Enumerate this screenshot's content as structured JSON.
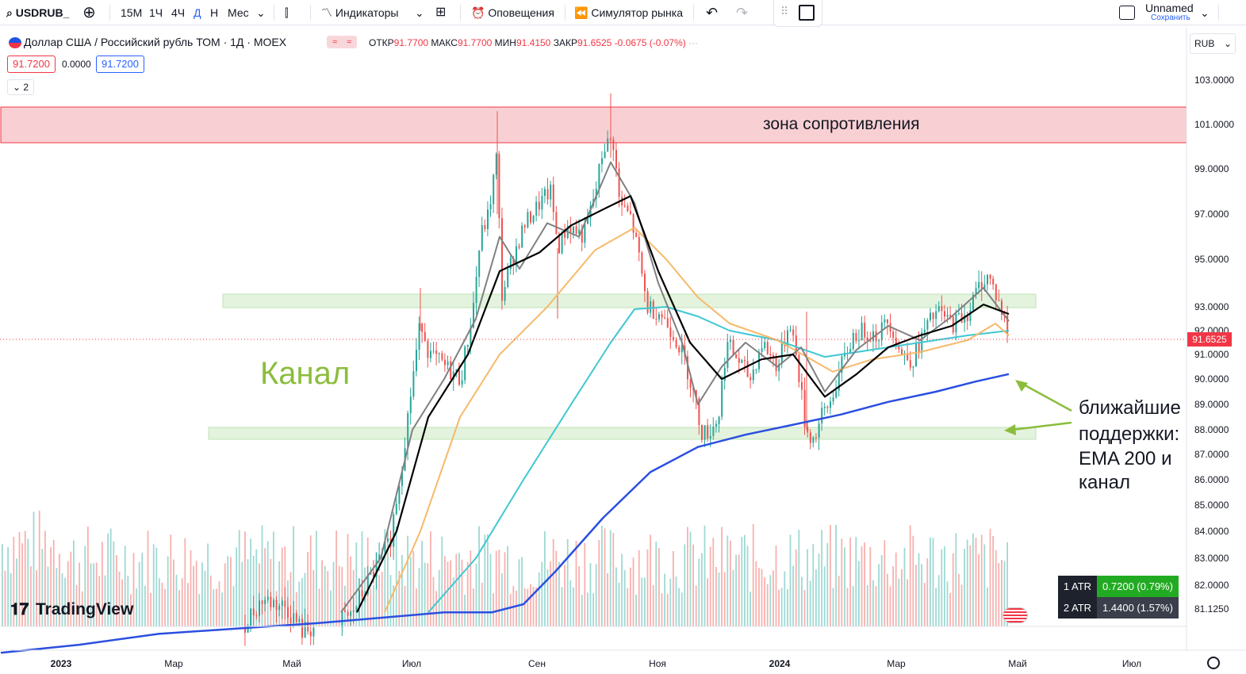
{
  "toolbar": {
    "symbol": "USDRUB_",
    "intervals": [
      "15М",
      "1Ч",
      "4Ч",
      "Д",
      "Н",
      "Мес"
    ],
    "active_interval": "Д",
    "indicators_label": "Индикаторы",
    "alerts_label": "Оповещения",
    "replay_label": "Симулятор рынка",
    "layout_name": "Unnamed",
    "save_label": "Сохранить"
  },
  "legend": {
    "title": "Доллар США / Российский рубль ТОМ · 1Д · MOEX",
    "open_label": "ОТКР",
    "open": "91.7700",
    "high_label": "МАКС",
    "high": "91.7700",
    "low_label": "МИН",
    "low": "91.4150",
    "close_label": "ЗАКР",
    "close": "91.6525",
    "change": "-0.0675 (-0.07%)",
    "sell_price": "91.7200",
    "spread": "0.0000",
    "buy_price": "91.7200",
    "collapsed_count": "2"
  },
  "currency": "RUB",
  "atr": [
    {
      "label": "1 ATR",
      "value": "0.7200 (0.79%)"
    },
    {
      "label": "2 ATR",
      "value": "1.4400 (1.57%)"
    }
  ],
  "branding": "TradingView",
  "chart_data": {
    "type": "candlestick",
    "price_axis_ticks": [
      "103.0000",
      "101.0000",
      "99.0000",
      "97.0000",
      "95.0000",
      "93.0000",
      "92.0000",
      "91.0000",
      "90.0000",
      "89.0000",
      "88.0000",
      "87.0000",
      "86.0000",
      "85.0000",
      "84.0000",
      "83.0000",
      "82.0000",
      "81.1250"
    ],
    "time_axis_ticks": [
      "2023",
      "Мар",
      "Май",
      "Июл",
      "Сен",
      "Ноя",
      "2024",
      "Мар",
      "Май",
      "Июл"
    ],
    "last_price": "91.6525",
    "annotations": {
      "resistance": "зона сопротивления",
      "channel": "Канал",
      "supports": [
        "ближайшие",
        "поддержки:",
        "EMA 200 и",
        "канал"
      ]
    },
    "colors": {
      "up": "#26a69a",
      "down": "#ef5350",
      "ema_fast": "#808080",
      "ema_mid": "#000000",
      "ema_50": "#f7b96a",
      "ema_100": "#3fc7d3",
      "ema_200": "#2b4fe0",
      "resistance_zone": "#f8d0d3",
      "channel_zone": "#e3f3de",
      "annotation_green": "#8bbd3c"
    },
    "ema_200_path_points": [
      [
        1,
        79.5
      ],
      [
        100,
        79.8
      ],
      [
        200,
        80.2
      ],
      [
        300,
        80.4
      ],
      [
        400,
        80.6
      ],
      [
        480,
        80.8
      ],
      [
        560,
        81.0
      ],
      [
        620,
        81.0
      ],
      [
        660,
        81.3
      ],
      [
        700,
        82.5
      ],
      [
        760,
        84.5
      ],
      [
        820,
        86.3
      ],
      [
        880,
        87.3
      ],
      [
        940,
        87.8
      ],
      [
        1000,
        88.2
      ],
      [
        1060,
        88.6
      ],
      [
        1120,
        89.1
      ],
      [
        1180,
        89.5
      ],
      [
        1230,
        89.9
      ],
      [
        1272,
        90.2
      ]
    ],
    "ema_100_path_points": [
      [
        540,
        81.0
      ],
      [
        600,
        83.0
      ],
      [
        660,
        86.0
      ],
      [
        720,
        89.0
      ],
      [
        770,
        91.5
      ],
      [
        800,
        92.9
      ],
      [
        840,
        93.0
      ],
      [
        880,
        92.6
      ],
      [
        920,
        92.0
      ],
      [
        980,
        91.6
      ],
      [
        1040,
        90.9
      ],
      [
        1100,
        91.2
      ],
      [
        1160,
        91.5
      ],
      [
        1220,
        91.8
      ],
      [
        1272,
        92.0
      ]
    ],
    "ema_50_path_points": [
      [
        485,
        81.0
      ],
      [
        530,
        84.0
      ],
      [
        580,
        88.5
      ],
      [
        630,
        91.0
      ],
      [
        690,
        93.0
      ],
      [
        750,
        95.4
      ],
      [
        800,
        96.4
      ],
      [
        840,
        95.0
      ],
      [
        880,
        93.4
      ],
      [
        920,
        92.3
      ],
      [
        980,
        91.6
      ],
      [
        1050,
        90.3
      ],
      [
        1100,
        90.8
      ],
      [
        1160,
        91.1
      ],
      [
        1220,
        91.6
      ],
      [
        1255,
        92.3
      ],
      [
        1272,
        91.8
      ]
    ],
    "ema_mid_path_points": [
      [
        450,
        81.0
      ],
      [
        500,
        84.0
      ],
      [
        540,
        88.5
      ],
      [
        590,
        91.0
      ],
      [
        630,
        94.5
      ],
      [
        680,
        95.3
      ],
      [
        720,
        96.5
      ],
      [
        760,
        97.2
      ],
      [
        795,
        97.8
      ],
      [
        830,
        94.5
      ],
      [
        870,
        91.5
      ],
      [
        910,
        90.0
      ],
      [
        960,
        90.8
      ],
      [
        1000,
        91.0
      ],
      [
        1040,
        89.3
      ],
      [
        1080,
        90.2
      ],
      [
        1120,
        91.3
      ],
      [
        1160,
        91.8
      ],
      [
        1200,
        92.2
      ],
      [
        1240,
        93.1
      ],
      [
        1272,
        92.7
      ]
    ],
    "ema_fast_path_points": [
      [
        430,
        81.0
      ],
      [
        480,
        83.0
      ],
      [
        520,
        88.0
      ],
      [
        560,
        90.0
      ],
      [
        600,
        92.5
      ],
      [
        630,
        96.0
      ],
      [
        655,
        94.6
      ],
      [
        690,
        96.6
      ],
      [
        730,
        96.0
      ],
      [
        770,
        99.3
      ],
      [
        800,
        97.5
      ],
      [
        830,
        94.0
      ],
      [
        860,
        91.5
      ],
      [
        880,
        89.0
      ],
      [
        910,
        90.5
      ],
      [
        940,
        91.5
      ],
      [
        980,
        90.5
      ],
      [
        1010,
        91.3
      ],
      [
        1040,
        89.5
      ],
      [
        1080,
        91.2
      ],
      [
        1120,
        92.2
      ],
      [
        1160,
        91.6
      ],
      [
        1200,
        92.6
      ],
      [
        1240,
        93.8
      ],
      [
        1272,
        92.4
      ]
    ]
  }
}
